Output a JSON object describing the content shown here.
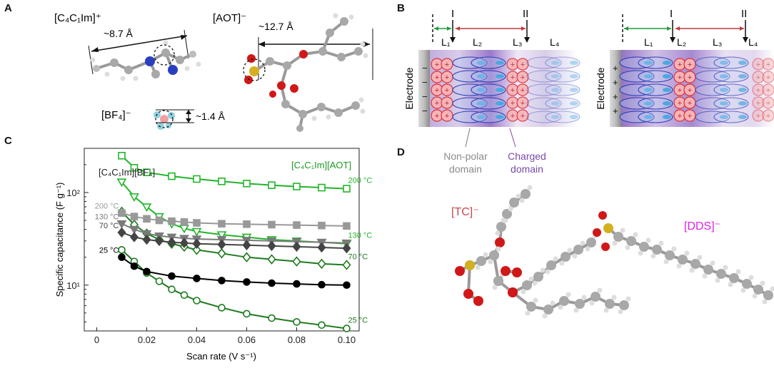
{
  "figure": {
    "panel_labels": {
      "a": "A",
      "b": "B",
      "c": "C",
      "d": "D"
    }
  },
  "panel_a": {
    "cation_label": "[C₄C₁Im]⁺",
    "cation_size": "~8.7 Å",
    "anion_aot_label": "[AOT]⁻",
    "anion_aot_size": "~12.7 Å",
    "anion_bf4_label": "[BF₄]⁻",
    "anion_bf4_size": "~1.4 Å"
  },
  "panel_b": {
    "electrode_label": "Electrode",
    "marker_I": "I",
    "marker_II": "II",
    "layers": [
      "L₁",
      "L₂",
      "L₃",
      "L₄"
    ],
    "nonpolar_label_line1": "Non-polar",
    "nonpolar_label_line2": "domain",
    "charged_label_line1": "Charged",
    "charged_label_line2": "domain",
    "left_electrode_sign": "−",
    "right_electrode_sign": "+",
    "ion_sign": "+",
    "colors": {
      "red": "#e0303a",
      "blue": "#2c3fb8",
      "purple": "#7a4aa8",
      "green": "#1f9a3c",
      "gray": "#8a8a8a"
    }
  },
  "panel_d": {
    "tc_label": "[TC]⁻",
    "dds_label": "[DDS]⁻",
    "tc_color": "#c8484c",
    "dds_color": "#e020e0"
  },
  "chart_data": {
    "type": "line",
    "title": "",
    "xlabel": "Scan rate (V s⁻¹)",
    "ylabel": "Specific capacitance (F g⁻¹)",
    "xlim": [
      -0.005,
      0.105
    ],
    "ylim": [
      3.2,
      300
    ],
    "yscale": "log",
    "xticks": [
      0,
      0.02,
      0.04,
      0.06,
      0.08,
      0.1
    ],
    "xtick_labels": [
      "0",
      "0.02",
      "0.04",
      "0.06",
      "0.08",
      "0.10"
    ],
    "yticks": [
      10,
      100
    ],
    "ytick_labels": [
      "10¹",
      "10²"
    ],
    "legend": [
      {
        "text": "[C₄C₁Im][BF₄]",
        "color": "#222222"
      },
      {
        "text": "[C₄C₁Im][AOT]",
        "color": "#1a9a20"
      }
    ],
    "series": [
      {
        "name": "[C4C1Im][AOT] 200 °C",
        "label": "200 °C",
        "label_side": "right",
        "color": "#22b52a",
        "marker": "square-open",
        "x": [
          0.01,
          0.015,
          0.02,
          0.03,
          0.04,
          0.05,
          0.06,
          0.07,
          0.08,
          0.09,
          0.1
        ],
        "y": [
          250,
          185,
          165,
          150,
          140,
          132,
          125,
          120,
          116,
          113,
          110
        ]
      },
      {
        "name": "[C4C1Im][AOT] 130 °C",
        "label": "130 °C",
        "label_side": "right",
        "color": "#22b52a",
        "marker": "triangle-down-open",
        "x": [
          0.01,
          0.015,
          0.02,
          0.025,
          0.03,
          0.035,
          0.04,
          0.05,
          0.06,
          0.07,
          0.08,
          0.09,
          0.1
        ],
        "y": [
          130,
          90,
          70,
          55,
          46,
          41,
          38,
          35,
          33,
          31,
          30,
          29,
          28
        ]
      },
      {
        "name": "[C4C1Im][AOT] 70 °C",
        "label": "70 °C",
        "label_side": "right",
        "color": "#1e7a1e",
        "marker": "diamond-open",
        "x": [
          0.01,
          0.015,
          0.02,
          0.025,
          0.03,
          0.035,
          0.04,
          0.05,
          0.06,
          0.07,
          0.08,
          0.09,
          0.1
        ],
        "y": [
          62,
          45,
          36,
          31,
          28,
          26,
          24,
          22,
          20,
          19,
          18,
          17,
          16.5
        ]
      },
      {
        "name": "[C4C1Im][AOT] 25 °C",
        "label": "25 °C",
        "label_side": "right",
        "color": "#1e7a1e",
        "marker": "circle-open",
        "x": [
          0.01,
          0.015,
          0.02,
          0.025,
          0.03,
          0.035,
          0.04,
          0.05,
          0.06,
          0.07,
          0.08,
          0.09,
          0.1
        ],
        "y": [
          24,
          18,
          13.5,
          11,
          9,
          7.8,
          6.8,
          5.7,
          4.9,
          4.4,
          4.0,
          3.7,
          3.4
        ]
      },
      {
        "name": "[C4C1Im][BF4] 200 °C",
        "label": "200 °C",
        "label_side": "left",
        "color": "#999999",
        "marker": "square",
        "x": [
          0.01,
          0.015,
          0.02,
          0.025,
          0.03,
          0.035,
          0.04,
          0.05,
          0.06,
          0.07,
          0.08,
          0.09,
          0.1
        ],
        "y": [
          60,
          55,
          52,
          50,
          49,
          48,
          47,
          46,
          45.5,
          45,
          44.5,
          44,
          43.5
        ]
      },
      {
        "name": "[C4C1Im][BF4] 130 °C",
        "label": "130 °C",
        "label_side": "left",
        "color": "#7a7a7a",
        "marker": "triangle-down",
        "x": [
          0.01,
          0.015,
          0.02,
          0.025,
          0.03,
          0.035,
          0.04,
          0.05,
          0.06,
          0.07,
          0.08,
          0.09,
          0.1
        ],
        "y": [
          46,
          40,
          36,
          34,
          33,
          32,
          31.5,
          31,
          30.5,
          30,
          29.5,
          29,
          28.5
        ]
      },
      {
        "name": "[C4C1Im][BF4] 70 °C",
        "label": "70 °C",
        "label_side": "left",
        "color": "#444444",
        "marker": "diamond",
        "x": [
          0.01,
          0.015,
          0.02,
          0.025,
          0.03,
          0.035,
          0.04,
          0.05,
          0.06,
          0.07,
          0.08,
          0.09,
          0.1
        ],
        "y": [
          37,
          33,
          31,
          30,
          29,
          28.5,
          28,
          27.5,
          27,
          26.5,
          26,
          25.5,
          25
        ]
      },
      {
        "name": "[C4C1Im][BF4] 25 °C",
        "label": "25 °C",
        "label_side": "left",
        "color": "#000000",
        "marker": "circle",
        "x": [
          0.01,
          0.015,
          0.02,
          0.03,
          0.04,
          0.05,
          0.06,
          0.07,
          0.08,
          0.09,
          0.1
        ],
        "y": [
          20,
          16,
          14,
          12.5,
          11.8,
          11.2,
          10.8,
          10.5,
          10.3,
          10.1,
          10
        ]
      }
    ]
  }
}
